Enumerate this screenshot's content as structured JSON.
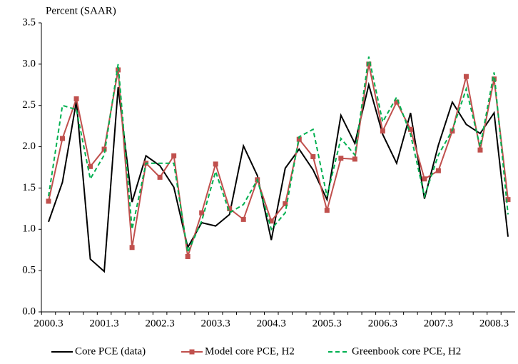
{
  "chart_data": {
    "type": "line",
    "y_label": "Percent (SAAR)",
    "categories": [
      "2000.3",
      null,
      null,
      null,
      "2001.3",
      null,
      null,
      null,
      "2002.3",
      null,
      null,
      null,
      "2003.3",
      null,
      null,
      null,
      "2004.3",
      null,
      null,
      null,
      "2005.3",
      null,
      null,
      null,
      "2006.3",
      null,
      null,
      null,
      "2007.3",
      null,
      null,
      null,
      "2008.3",
      null
    ],
    "series": [
      {
        "name": "Core PCE (data)",
        "color": "#000000",
        "dash": false,
        "marker": "none",
        "values": [
          1.09,
          1.57,
          2.55,
          0.64,
          0.49,
          2.72,
          1.33,
          1.89,
          1.77,
          1.51,
          0.78,
          1.08,
          1.04,
          1.18,
          2.01,
          1.65,
          0.87,
          1.74,
          1.97,
          1.72,
          1.36,
          2.38,
          2.04,
          2.75,
          2.15,
          1.8,
          2.41,
          1.37,
          2.02,
          2.54,
          2.27,
          2.16,
          2.41,
          0.91
        ]
      },
      {
        "name": "Model core PCE, H2",
        "color": "#c0504d",
        "dash": false,
        "marker": "square",
        "values": [
          1.34,
          2.1,
          2.58,
          1.76,
          1.97,
          2.93,
          0.78,
          1.8,
          1.63,
          1.89,
          0.67,
          1.2,
          1.79,
          1.25,
          1.12,
          1.6,
          1.1,
          1.31,
          2.09,
          1.88,
          1.23,
          1.86,
          1.85,
          3.0,
          2.19,
          2.54,
          2.21,
          1.61,
          1.71,
          2.19,
          2.85,
          1.96,
          2.82,
          1.36
        ]
      },
      {
        "name": "Greenbook core PCE, H2",
        "color": "#00b050",
        "dash": true,
        "marker": "none",
        "values": [
          1.4,
          2.5,
          2.45,
          1.61,
          1.9,
          3.0,
          1.0,
          1.8,
          1.8,
          1.8,
          0.72,
          1.1,
          1.7,
          1.2,
          1.3,
          1.6,
          1.0,
          1.2,
          2.12,
          2.21,
          1.4,
          2.1,
          1.9,
          3.09,
          2.3,
          2.6,
          2.15,
          1.4,
          1.9,
          2.2,
          2.7,
          2.0,
          2.9,
          1.18
        ]
      }
    ],
    "ylim": [
      0,
      3.5
    ],
    "yticks": [
      {
        "value": 0,
        "label": "0.0"
      },
      0.5,
      {
        "value": 1,
        "label": "1.0"
      },
      1.5,
      {
        "value": 2,
        "label": "2.0"
      },
      2.5,
      {
        "value": 3,
        "label": "3.0"
      },
      3.5
    ],
    "grid": false
  }
}
